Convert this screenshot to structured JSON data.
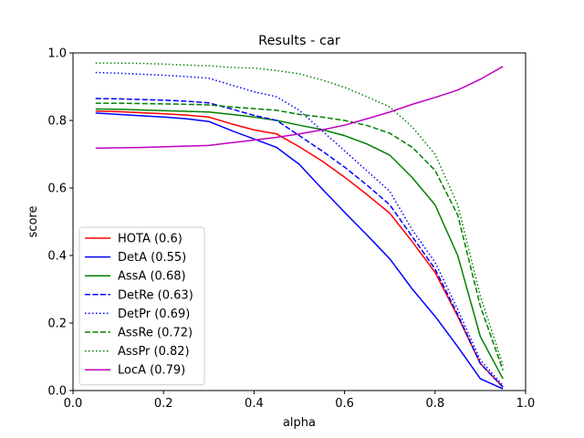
{
  "chart_data": {
    "type": "line",
    "title": "Results - car",
    "xlabel": "alpha",
    "ylabel": "score",
    "xlim": [
      0.0,
      1.0
    ],
    "ylim": [
      0.0,
      1.0
    ],
    "xticks": [
      "0.0",
      "0.2",
      "0.4",
      "0.6",
      "0.8",
      "1.0"
    ],
    "yticks": [
      "0.0",
      "0.2",
      "0.4",
      "0.6",
      "0.8",
      "1.0"
    ],
    "grid": false,
    "legend_position": "lower-left",
    "x": [
      0.05,
      0.1,
      0.15,
      0.2,
      0.25,
      0.3,
      0.35,
      0.4,
      0.45,
      0.5,
      0.55,
      0.6,
      0.65,
      0.7,
      0.75,
      0.8,
      0.85,
      0.9,
      0.95
    ],
    "series": [
      {
        "name": "HOTA (0.6)",
        "color": "#ff0000",
        "dash": "solid",
        "values": [
          0.828,
          0.826,
          0.823,
          0.82,
          0.816,
          0.81,
          0.79,
          0.772,
          0.76,
          0.722,
          0.68,
          0.632,
          0.58,
          0.525,
          0.44,
          0.35,
          0.22,
          0.08,
          0.01
        ]
      },
      {
        "name": "DetA (0.55)",
        "color": "#0000ff",
        "dash": "solid",
        "values": [
          0.822,
          0.818,
          0.814,
          0.81,
          0.805,
          0.797,
          0.77,
          0.745,
          0.72,
          0.67,
          0.598,
          0.528,
          0.46,
          0.39,
          0.3,
          0.22,
          0.13,
          0.035,
          0.005
        ]
      },
      {
        "name": "AssA (0.68)",
        "color": "#008000",
        "dash": "solid",
        "values": [
          0.834,
          0.833,
          0.831,
          0.829,
          0.827,
          0.825,
          0.818,
          0.81,
          0.8,
          0.786,
          0.773,
          0.755,
          0.73,
          0.697,
          0.63,
          0.55,
          0.4,
          0.16,
          0.035
        ]
      },
      {
        "name": "DetRe (0.63)",
        "color": "#0000ff",
        "dash": "dashed",
        "values": [
          0.865,
          0.864,
          0.862,
          0.86,
          0.857,
          0.852,
          0.834,
          0.815,
          0.8,
          0.755,
          0.71,
          0.662,
          0.608,
          0.55,
          0.455,
          0.36,
          0.225,
          0.08,
          0.01
        ]
      },
      {
        "name": "DetPr (0.69)",
        "color": "#0000ff",
        "dash": "dotted",
        "values": [
          0.942,
          0.94,
          0.937,
          0.934,
          0.93,
          0.925,
          0.905,
          0.885,
          0.87,
          0.83,
          0.77,
          0.71,
          0.65,
          0.59,
          0.475,
          0.38,
          0.24,
          0.09,
          0.015
        ]
      },
      {
        "name": "AssRe (0.72)",
        "color": "#008000",
        "dash": "dashed",
        "values": [
          0.851,
          0.851,
          0.85,
          0.849,
          0.848,
          0.846,
          0.84,
          0.835,
          0.83,
          0.818,
          0.81,
          0.8,
          0.785,
          0.762,
          0.72,
          0.652,
          0.52,
          0.25,
          0.06
        ]
      },
      {
        "name": "AssPr (0.82)",
        "color": "#008000",
        "dash": "dotted",
        "values": [
          0.97,
          0.97,
          0.969,
          0.967,
          0.964,
          0.962,
          0.957,
          0.955,
          0.948,
          0.938,
          0.92,
          0.898,
          0.87,
          0.84,
          0.78,
          0.7,
          0.55,
          0.28,
          0.075
        ]
      },
      {
        "name": "LocA (0.79)",
        "color": "#bf00bf",
        "dash": "solid",
        "values": [
          0.718,
          0.719,
          0.72,
          0.722,
          0.724,
          0.726,
          0.734,
          0.742,
          0.75,
          0.76,
          0.772,
          0.786,
          0.805,
          0.825,
          0.848,
          0.868,
          0.89,
          0.922,
          0.96
        ]
      }
    ]
  }
}
